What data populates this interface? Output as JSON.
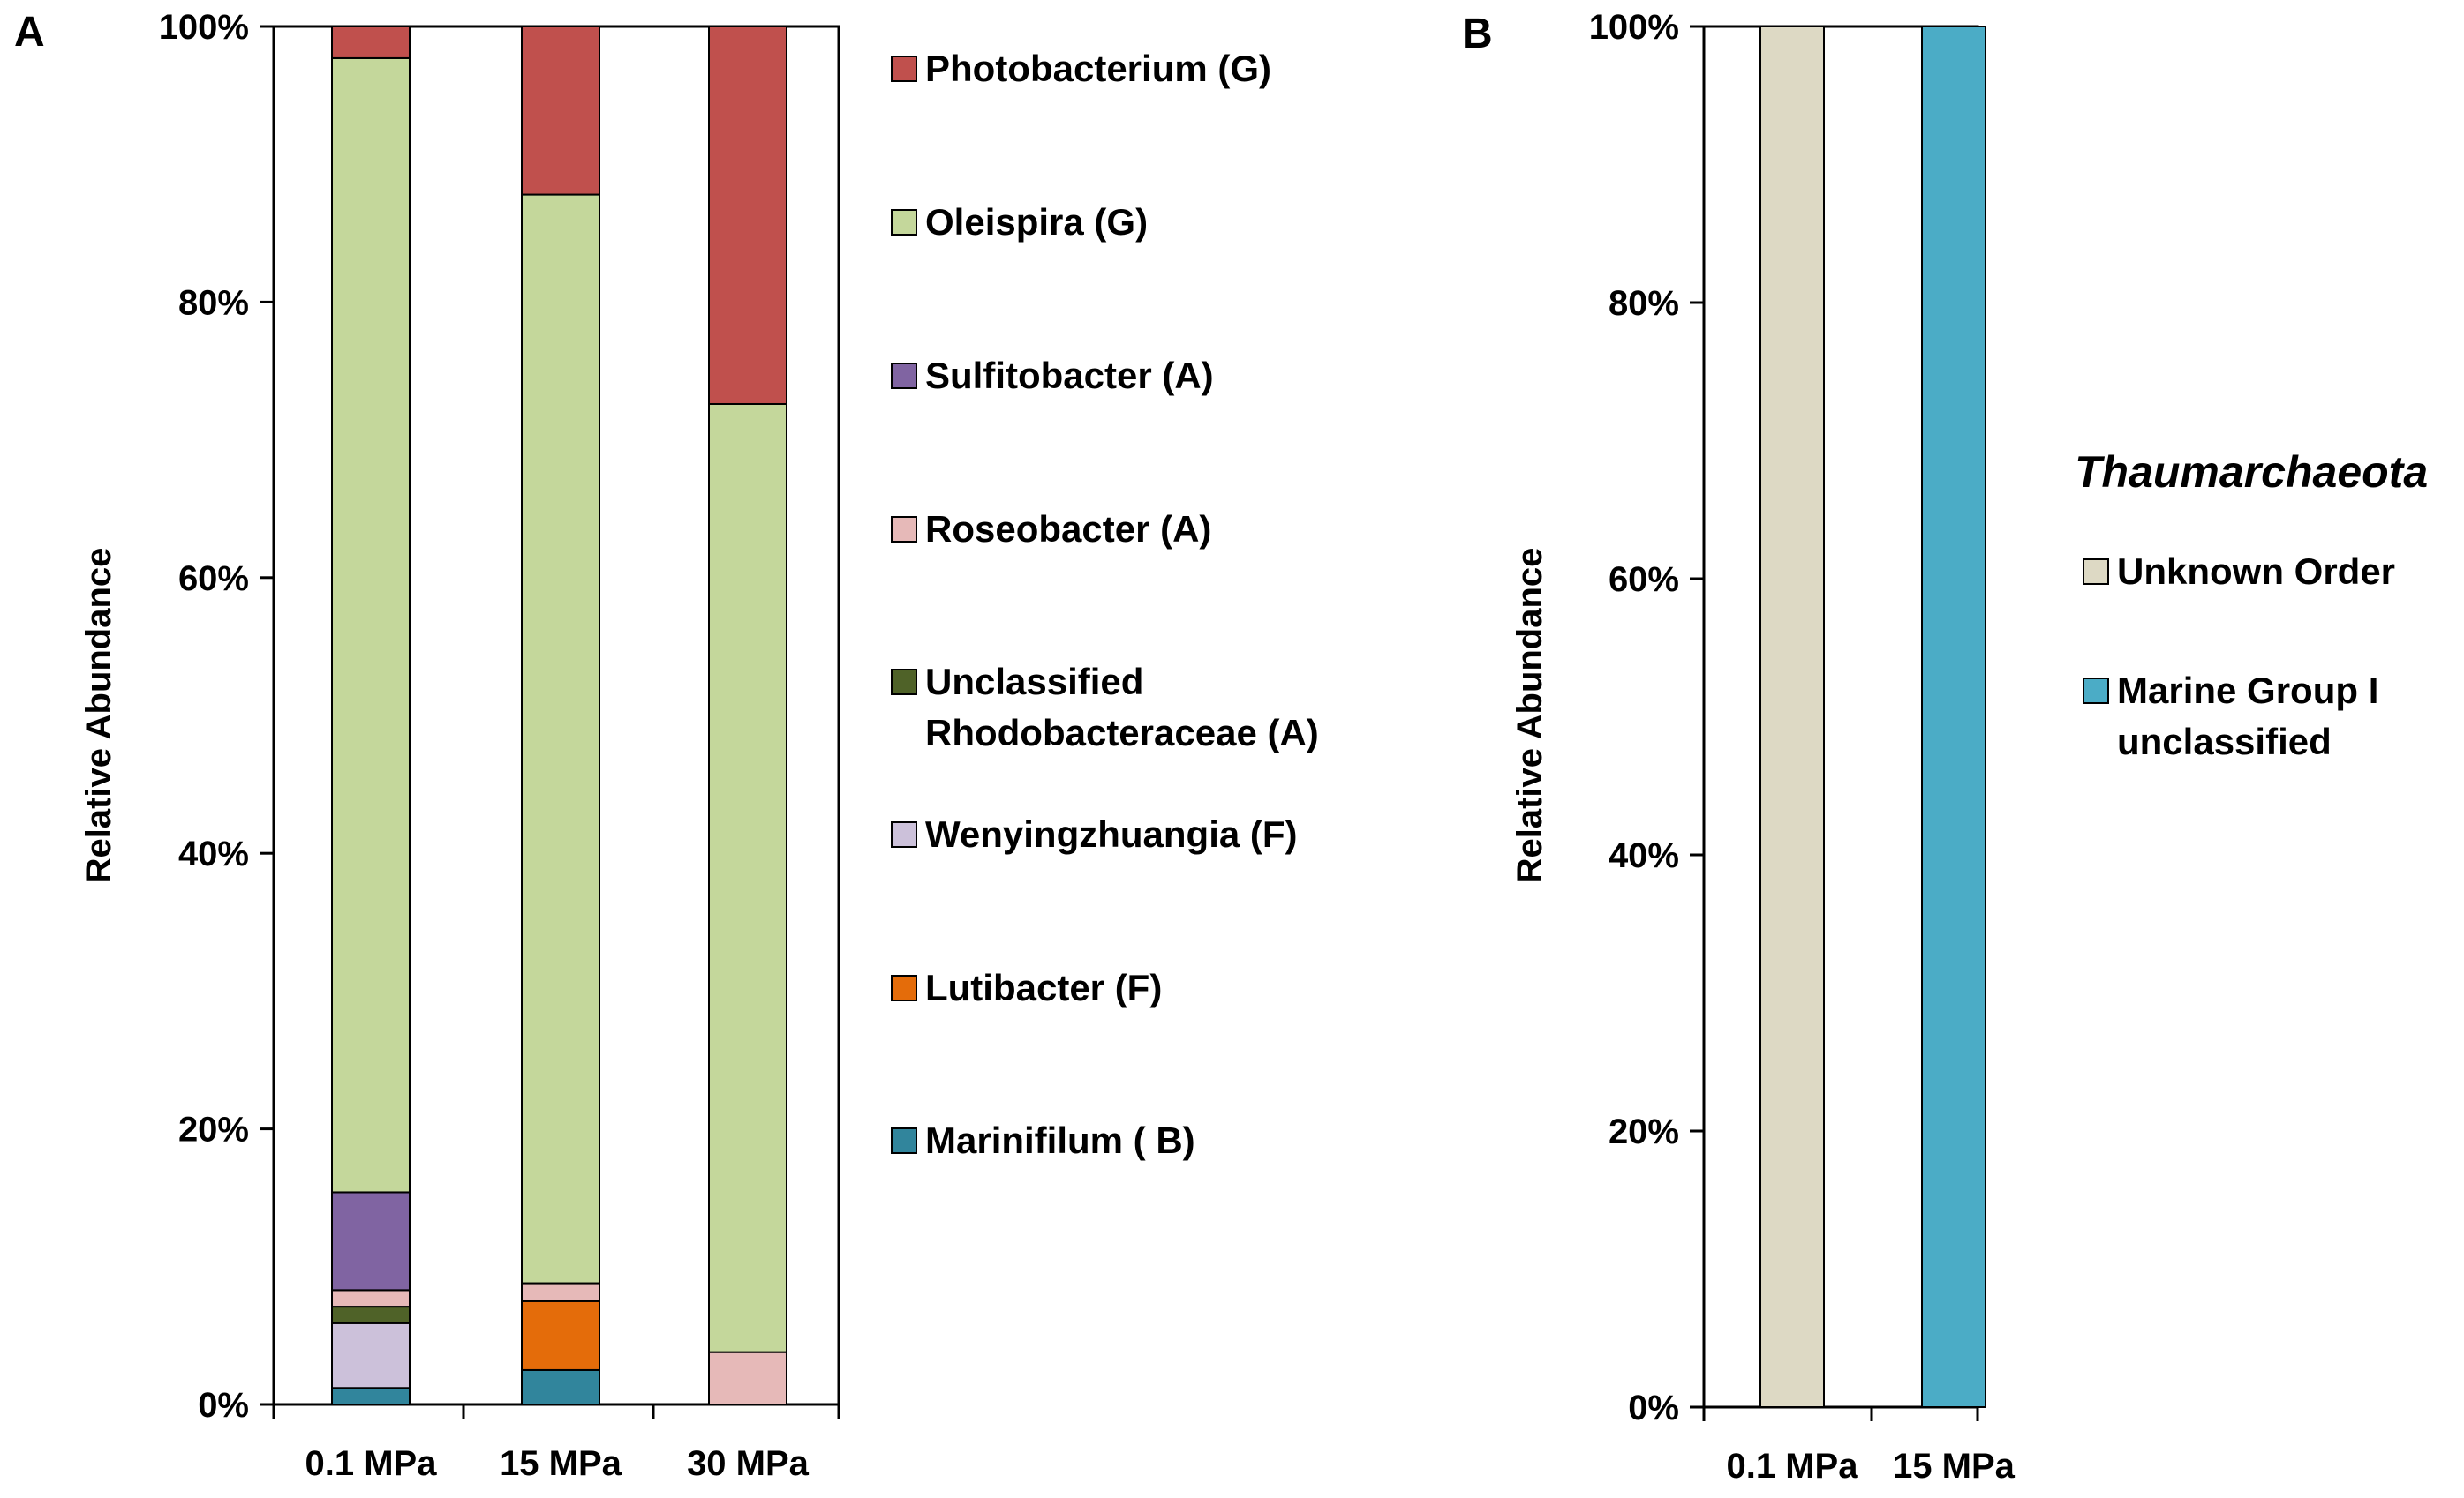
{
  "chart_data": [
    {
      "panel_label": "A",
      "type": "bar",
      "stacked": true,
      "ylabel": "Relative Abundance",
      "ylim": [
        0,
        100
      ],
      "yticks": [
        "0%",
        "20%",
        "40%",
        "60%",
        "80%",
        "100%"
      ],
      "categories": [
        "0.1 MPa",
        "15 MPa",
        "30 MPa"
      ],
      "series": [
        {
          "name": "Marinifilum ( B)",
          "color": "#31859c",
          "values": [
            1.2,
            2.5,
            0
          ]
        },
        {
          "name": "Lutibacter (F)",
          "color": "#e46c0a",
          "values": [
            0,
            5.0,
            0
          ]
        },
        {
          "name": "Wenyingzhuangia (F)",
          "color": "#ccc1da",
          "values": [
            4.7,
            0,
            0
          ]
        },
        {
          "name": "Unclassified Rhodobacteraceae (A)",
          "color": "#4f6228",
          "values": [
            1.2,
            0,
            0
          ]
        },
        {
          "name": "Roseobacter (A)",
          "color": "#e6b9b8",
          "values": [
            1.2,
            1.3,
            3.8
          ]
        },
        {
          "name": "Sulfitobacter (A)",
          "color": "#8064a2",
          "values": [
            7.1,
            0,
            0
          ]
        },
        {
          "name": "Oleispira (G)",
          "color": "#c4d79b",
          "values": [
            82.3,
            79.0,
            68.8
          ]
        },
        {
          "name": "Photobacterium (G)",
          "color": "#c0504d",
          "values": [
            2.3,
            12.2,
            27.4
          ]
        }
      ],
      "legend": {
        "position": "right",
        "order": [
          "Photobacterium (G)",
          "Oleispira (G)",
          "Sulfitobacter (A)",
          "Roseobacter (A)",
          "Unclassified Rhodobacteraceae (A)",
          "Wenyingzhuangia (F)",
          "Lutibacter (F)",
          "Marinifilum ( B)"
        ],
        "wrapped_labels": {
          "Unclassified Rhodobacteraceae (A)": [
            "Unclassified",
            "Rhodobacteraceae (A)"
          ]
        }
      }
    },
    {
      "panel_label": "B",
      "type": "bar",
      "stacked": true,
      "ylabel": "Relative Abundance",
      "ylim": [
        0,
        100
      ],
      "yticks": [
        "0%",
        "20%",
        "40%",
        "60%",
        "80%",
        "100%"
      ],
      "categories": [
        "0.1 MPa",
        "15 MPa"
      ],
      "series": [
        {
          "name": "Unknown Order",
          "color": "#ddd9c4",
          "values": [
            100,
            0
          ]
        },
        {
          "name": "Marine Group I unclassified",
          "color": "#4bacc6",
          "values": [
            0,
            100
          ]
        }
      ],
      "legend": {
        "position": "right",
        "heading": "Thaumarchaeota",
        "order": [
          "Unknown Order",
          "Marine Group I unclassified"
        ],
        "wrapped_labels": {
          "Marine Group I unclassified": [
            "Marine Group I",
            "unclassified"
          ]
        }
      }
    }
  ]
}
